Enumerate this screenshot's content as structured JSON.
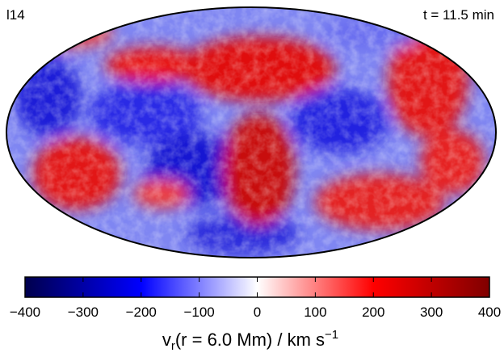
{
  "chart_data": {
    "type": "mollweide",
    "panel_label": "l14",
    "time_label": "t = 11.5 min",
    "colorbar": {
      "label": {
        "symbol": "v",
        "subscript": "r",
        "text": "(r = 6.0 Mm) / km s",
        "superscript": "−1"
      },
      "lim": [
        -400,
        400
      ],
      "ticks": [
        {
          "value": -400,
          "label": "−400"
        },
        {
          "value": -300,
          "label": "−300"
        },
        {
          "value": -200,
          "label": "−200"
        },
        {
          "value": -100,
          "label": "−100"
        },
        0,
        100,
        200,
        300,
        400
      ],
      "colors": [
        "#00004d",
        "#0000ff",
        "#ffffff",
        "#ff0000",
        "#800000"
      ]
    }
  }
}
